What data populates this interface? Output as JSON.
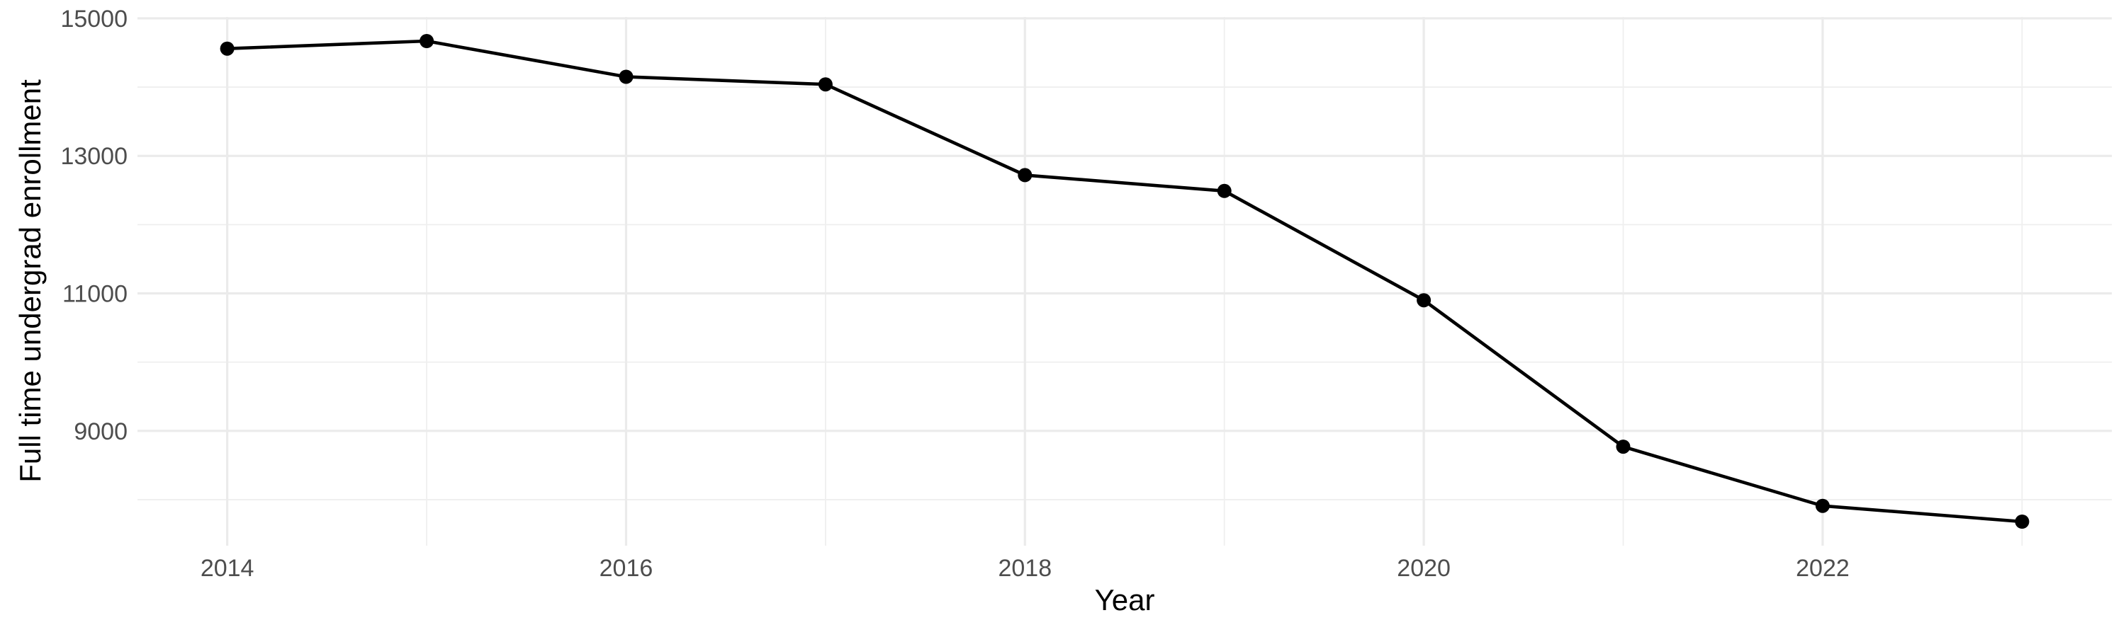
{
  "chart_data": {
    "type": "line",
    "title": "",
    "xlabel": "Year",
    "ylabel": "Full time undergrad enrollment",
    "x": [
      2014,
      2015,
      2016,
      2017,
      2018,
      2019,
      2020,
      2021,
      2022,
      2023
    ],
    "values": [
      14560,
      14670,
      14150,
      14040,
      12720,
      12490,
      10900,
      8770,
      7910,
      7680
    ],
    "x_ticks": [
      2014,
      2016,
      2018,
      2020,
      2022
    ],
    "x_minor_ticks": [
      2015,
      2017,
      2019,
      2021,
      2023
    ],
    "y_ticks": [
      9000,
      11000,
      13000,
      15000
    ],
    "y_minor_ticks": [
      8000,
      10000,
      12000,
      14000
    ],
    "xlim": [
      2013.55,
      2023.45
    ],
    "ylim": [
      7330,
      15020
    ],
    "grid": "major+minor",
    "legend": "none",
    "marker": "filled-circle",
    "colors": {
      "line": "#000000",
      "point": "#000000",
      "grid_major": "#EBEBEB",
      "grid_minor": "#EFEFEF",
      "tick_label": "#4D4D4D",
      "axis_title": "#000000",
      "background": "#FFFFFF"
    }
  }
}
